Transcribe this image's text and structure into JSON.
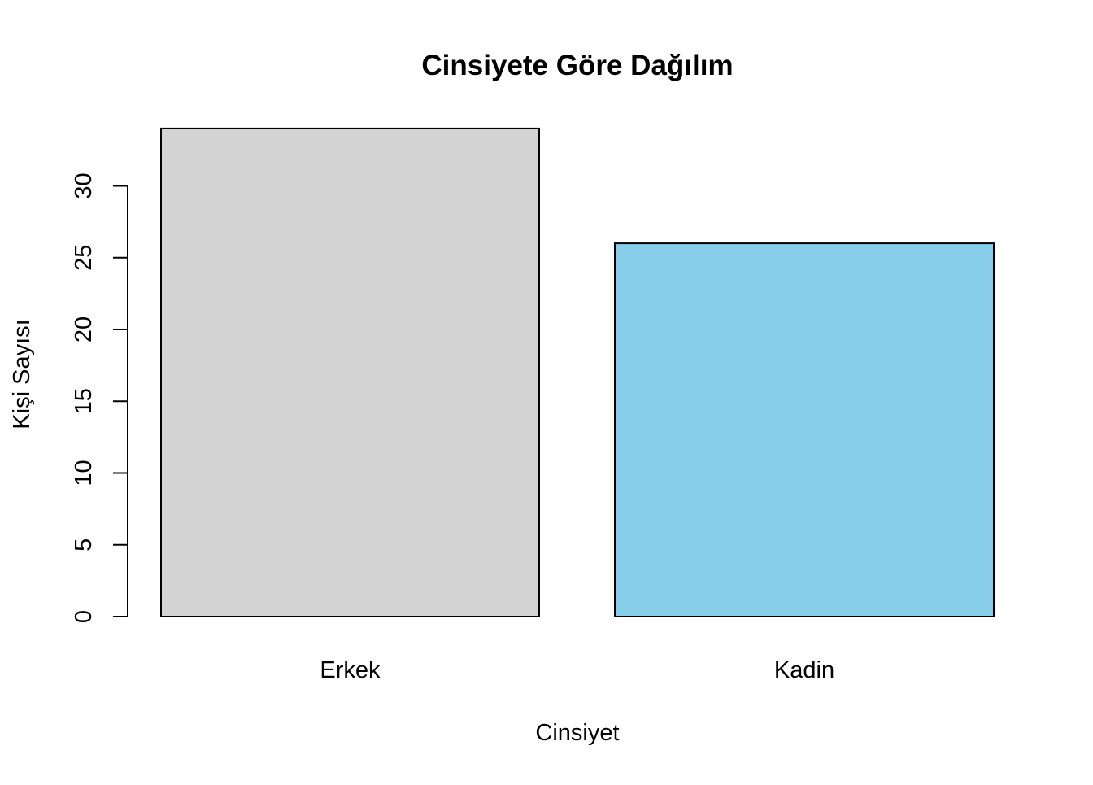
{
  "chart_data": {
    "type": "bar",
    "title": "Cinsiyete Göre Dağılım",
    "xlabel": "Cinsiyet",
    "ylabel": "Kişi Sayısı",
    "categories": [
      "Erkek",
      "Kadin"
    ],
    "values": [
      34,
      26
    ],
    "colors": [
      "#d3d3d3",
      "#87ceeb"
    ],
    "bar_border_color": "#000000",
    "ylim": [
      0,
      34
    ],
    "yticks": [
      0,
      5,
      10,
      15,
      20,
      25,
      30
    ],
    "grid": false,
    "legend": "none"
  }
}
